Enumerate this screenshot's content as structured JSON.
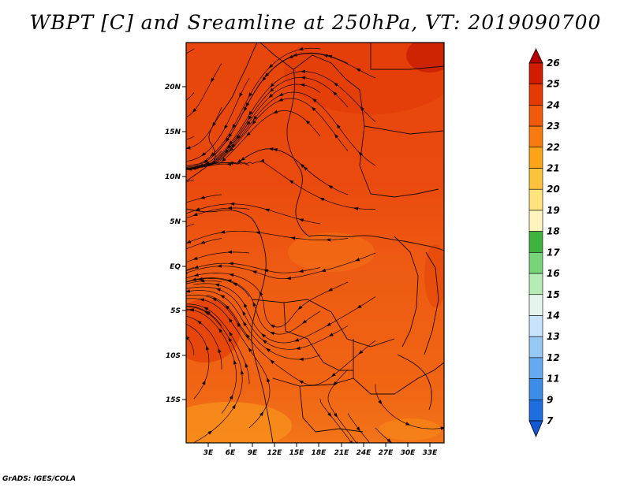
{
  "title": "WBPT [C] and Sreamline at 250hPa, VT: 2019090700",
  "credit": "GrADS: IGES/COLA",
  "map": {
    "lat_labels": [
      "20N",
      "15N",
      "10N",
      "5N",
      "EQ",
      "5S",
      "10S",
      "15S"
    ],
    "lon_labels": [
      "3E",
      "6E",
      "9E",
      "12E",
      "15E",
      "18E",
      "21E",
      "24E",
      "27E",
      "30E",
      "33E"
    ],
    "lat_range": [
      -20,
      24.5
    ],
    "lon_range": [
      0,
      35
    ]
  },
  "colorbar": {
    "labels": [
      "26",
      "25",
      "24",
      "23",
      "22",
      "21",
      "20",
      "19",
      "18",
      "17",
      "16",
      "15",
      "14",
      "13",
      "12",
      "11",
      "9",
      "7"
    ],
    "colors": [
      "#b40000",
      "#d21c00",
      "#e63a05",
      "#f05a0a",
      "#f87a10",
      "#fca418",
      "#fcc23c",
      "#fde27e",
      "#fdf4be",
      "#3cb43c",
      "#78d478",
      "#b4ecb4",
      "#e4f6ec",
      "#c8e4fa",
      "#96c8f4",
      "#64aaf0",
      "#3c8ce8",
      "#1e6ee0",
      "#1456d4"
    ]
  }
}
